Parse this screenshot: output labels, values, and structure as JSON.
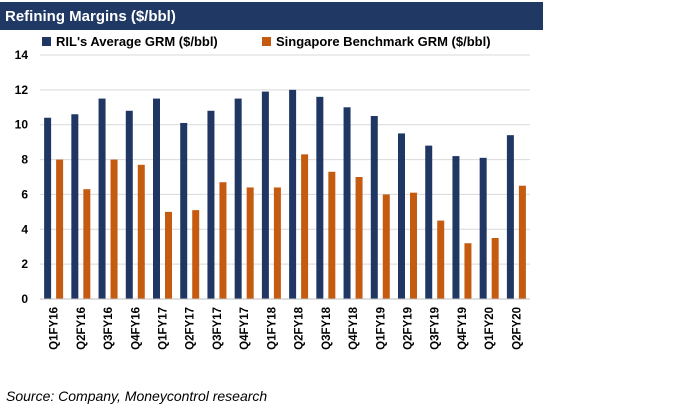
{
  "title": "Refining Margins ($/bbl)",
  "source": "Source: Company, Moneycontrol research",
  "colors": {
    "title_bg": "#1f3864",
    "series_1": "#203764",
    "series_2": "#c55a11",
    "grid": "#d9d9d9"
  },
  "chart_data": {
    "type": "bar",
    "title": "Refining Margins ($/bbl)",
    "xlabel": "",
    "ylabel": "",
    "ylim": [
      0,
      14
    ],
    "yticks": [
      0,
      2,
      4,
      6,
      8,
      10,
      12,
      14
    ],
    "grid": true,
    "legend": "top",
    "categories": [
      "Q1FY16",
      "Q2FY16",
      "Q3FY16",
      "Q4FY16",
      "Q1FY17",
      "Q2FY17",
      "Q3FY17",
      "Q4FY17",
      "Q1FY18",
      "Q2FY18",
      "Q3FY18",
      "Q4FY18",
      "Q1FY19",
      "Q2FY19",
      "Q3FY19",
      "Q4FY19",
      "Q1FY20",
      "Q2FY20"
    ],
    "series": [
      {
        "name": "RIL's Average GRM ($/bbl)",
        "values": [
          10.4,
          10.6,
          11.5,
          10.8,
          11.5,
          10.1,
          10.8,
          11.5,
          11.9,
          12.0,
          11.6,
          11.0,
          10.5,
          9.5,
          8.8,
          8.2,
          8.1,
          9.4
        ]
      },
      {
        "name": "Singapore Benchmark GRM ($/bbl)",
        "values": [
          8.0,
          6.3,
          8.0,
          7.7,
          5.0,
          5.1,
          6.7,
          6.4,
          6.4,
          8.3,
          7.3,
          7.0,
          6.0,
          6.1,
          4.5,
          3.2,
          3.5,
          6.5
        ]
      }
    ]
  }
}
